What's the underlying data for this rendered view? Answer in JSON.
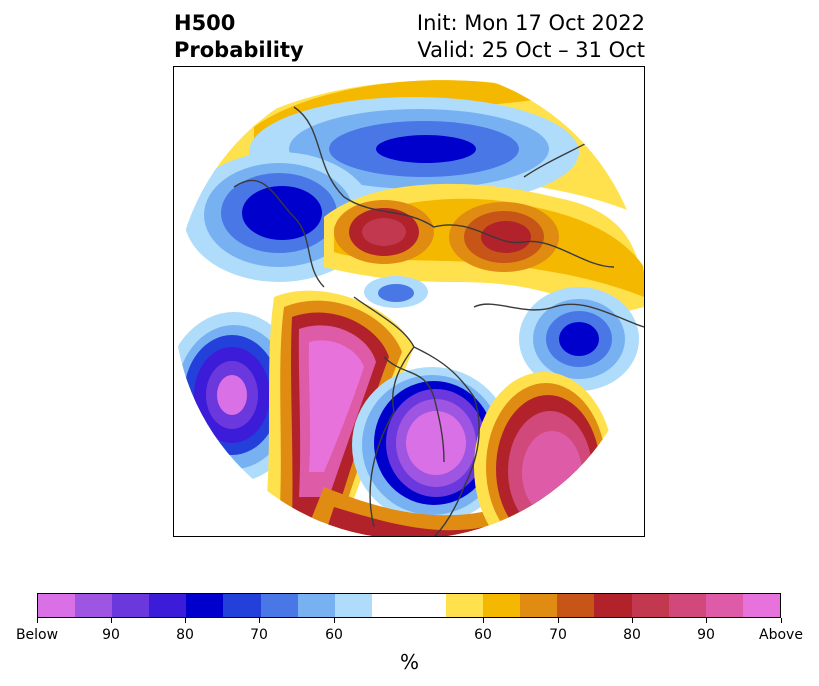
{
  "title": {
    "left_line1": "H500",
    "left_line2": "Probability",
    "right_line1": "Init: Mon 17 Oct 2022",
    "right_line2": "Valid: 25 Oct – 31 Oct"
  },
  "colorbar": {
    "unit": "%",
    "colors": [
      "#da70e6",
      "#9d55e2",
      "#6b38dd",
      "#3c1cd8",
      "#0000cd",
      "#2440db",
      "#4a77e6",
      "#78b1f2",
      "#aedcfa",
      "#ffffff",
      "#ffffff",
      "#ffe14d",
      "#f5b800",
      "#e08c12",
      "#c65517",
      "#b2222a",
      "#c2384f",
      "#d1497a",
      "#de5ba7",
      "#e872db"
    ],
    "tick_labels": [
      "Below",
      "90",
      "80",
      "70",
      "60",
      "60",
      "70",
      "80",
      "90",
      "Above"
    ]
  },
  "map": {
    "projection": "north-polar-stereographic",
    "variable": "500 hPa height anomaly probability"
  }
}
